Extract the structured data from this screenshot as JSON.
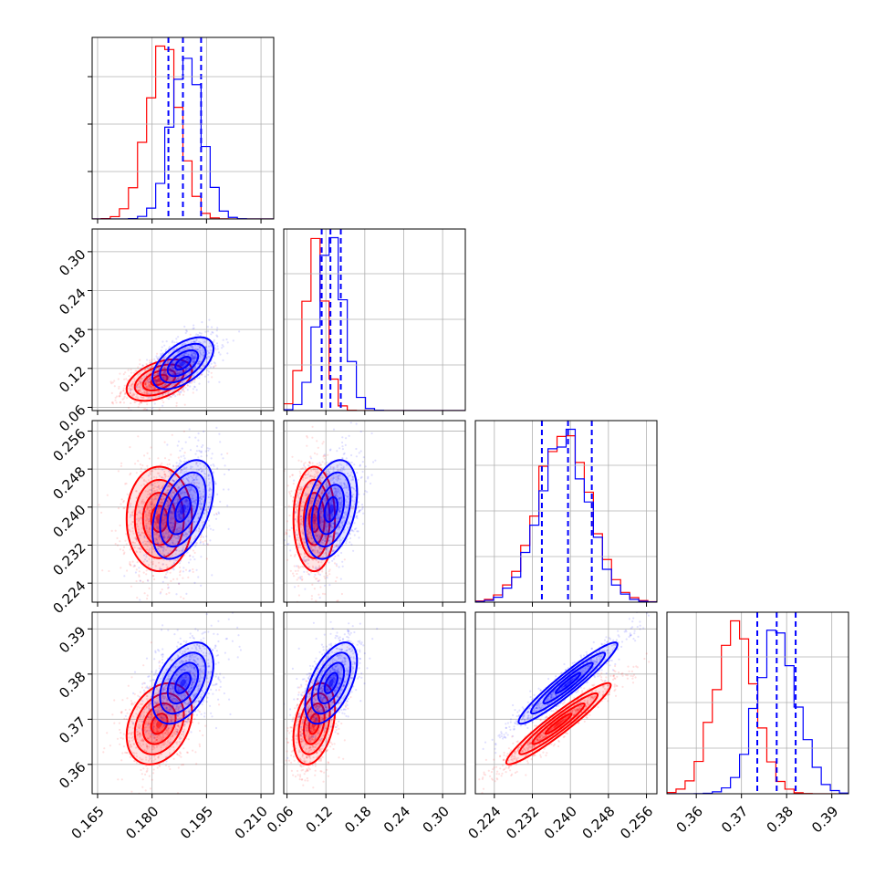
{
  "chart_data": {
    "type": "corner",
    "grid": true,
    "parameters": [
      {
        "ticks": [
          0.165,
          0.18,
          0.195,
          0.21
        ],
        "tick_labels": [
          "0.165",
          "0.180",
          "0.195",
          "0.210"
        ],
        "range": [
          0.1635,
          0.2135
        ]
      },
      {
        "ticks": [
          0.06,
          0.12,
          0.18,
          0.24,
          0.3
        ],
        "tick_labels": [
          "0.06",
          "0.12",
          "0.18",
          "0.24",
          "0.30"
        ],
        "range": [
          0.055,
          0.335
        ]
      },
      {
        "ticks": [
          0.224,
          0.232,
          0.24,
          0.248,
          0.256
        ],
        "tick_labels": [
          "0.224",
          "0.232",
          "0.240",
          "0.248",
          "0.256"
        ],
        "range": [
          0.22,
          0.2582
        ]
      },
      {
        "ticks": [
          0.36,
          0.37,
          0.38,
          0.39
        ],
        "tick_labels": [
          "0.36",
          "0.37",
          "0.38",
          "0.39"
        ],
        "range": [
          0.3535,
          0.3937
        ]
      }
    ],
    "series": [
      {
        "color": "#ff0000",
        "means": [
          0.182,
          0.102,
          0.2375,
          0.369
        ],
        "sigmas": [
          0.0045,
          0.016,
          0.0055,
          0.0045
        ],
        "correlations": {
          "0-1": 0.45,
          "0-2": 0.0,
          "1-2": 0.0,
          "0-3": 0.3,
          "1-3": 0.35,
          "2-3": 0.95
        },
        "hist_peaks": [
          0.183,
          0.103,
          0.2385,
          0.3685
        ]
      },
      {
        "color": "#0000ff",
        "means": [
          0.1885,
          0.128,
          0.2395,
          0.378
        ],
        "sigmas": [
          0.0042,
          0.02,
          0.0052,
          0.0045
        ],
        "correlations": {
          "0-1": 0.55,
          "0-2": 0.45,
          "1-2": 0.35,
          "0-3": 0.45,
          "1-3": 0.55,
          "2-3": 0.95
        },
        "hist_peaks": [
          0.1895,
          0.128,
          0.2385,
          0.378
        ]
      }
    ],
    "quantile_lines": {
      "color": "#0000ff",
      "style": "dashed",
      "values": [
        [
          0.1845,
          0.1885,
          0.1935
        ],
        [
          0.1135,
          0.127,
          0.143
        ],
        [
          0.234,
          0.2395,
          0.2445
        ],
        [
          0.3735,
          0.3778,
          0.382
        ]
      ]
    }
  }
}
